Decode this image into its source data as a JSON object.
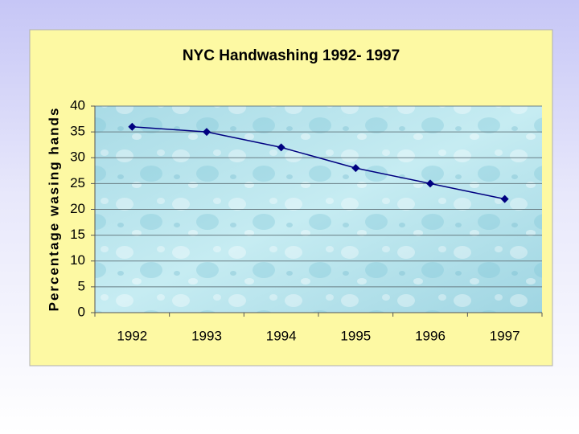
{
  "chart_data": {
    "type": "line",
    "title": "NYC Handwashing 1992- 1997",
    "y_label": "Percentage wasing hands",
    "categories": [
      "1992",
      "1993",
      "1994",
      "1995",
      "1996",
      "1997"
    ],
    "values": [
      36,
      35,
      32,
      28,
      25,
      22
    ],
    "color": "#000080",
    "ylim": [
      0,
      40
    ],
    "yticks": [
      0,
      5,
      10,
      15,
      20,
      25,
      30,
      35,
      40
    ],
    "grid": true
  }
}
